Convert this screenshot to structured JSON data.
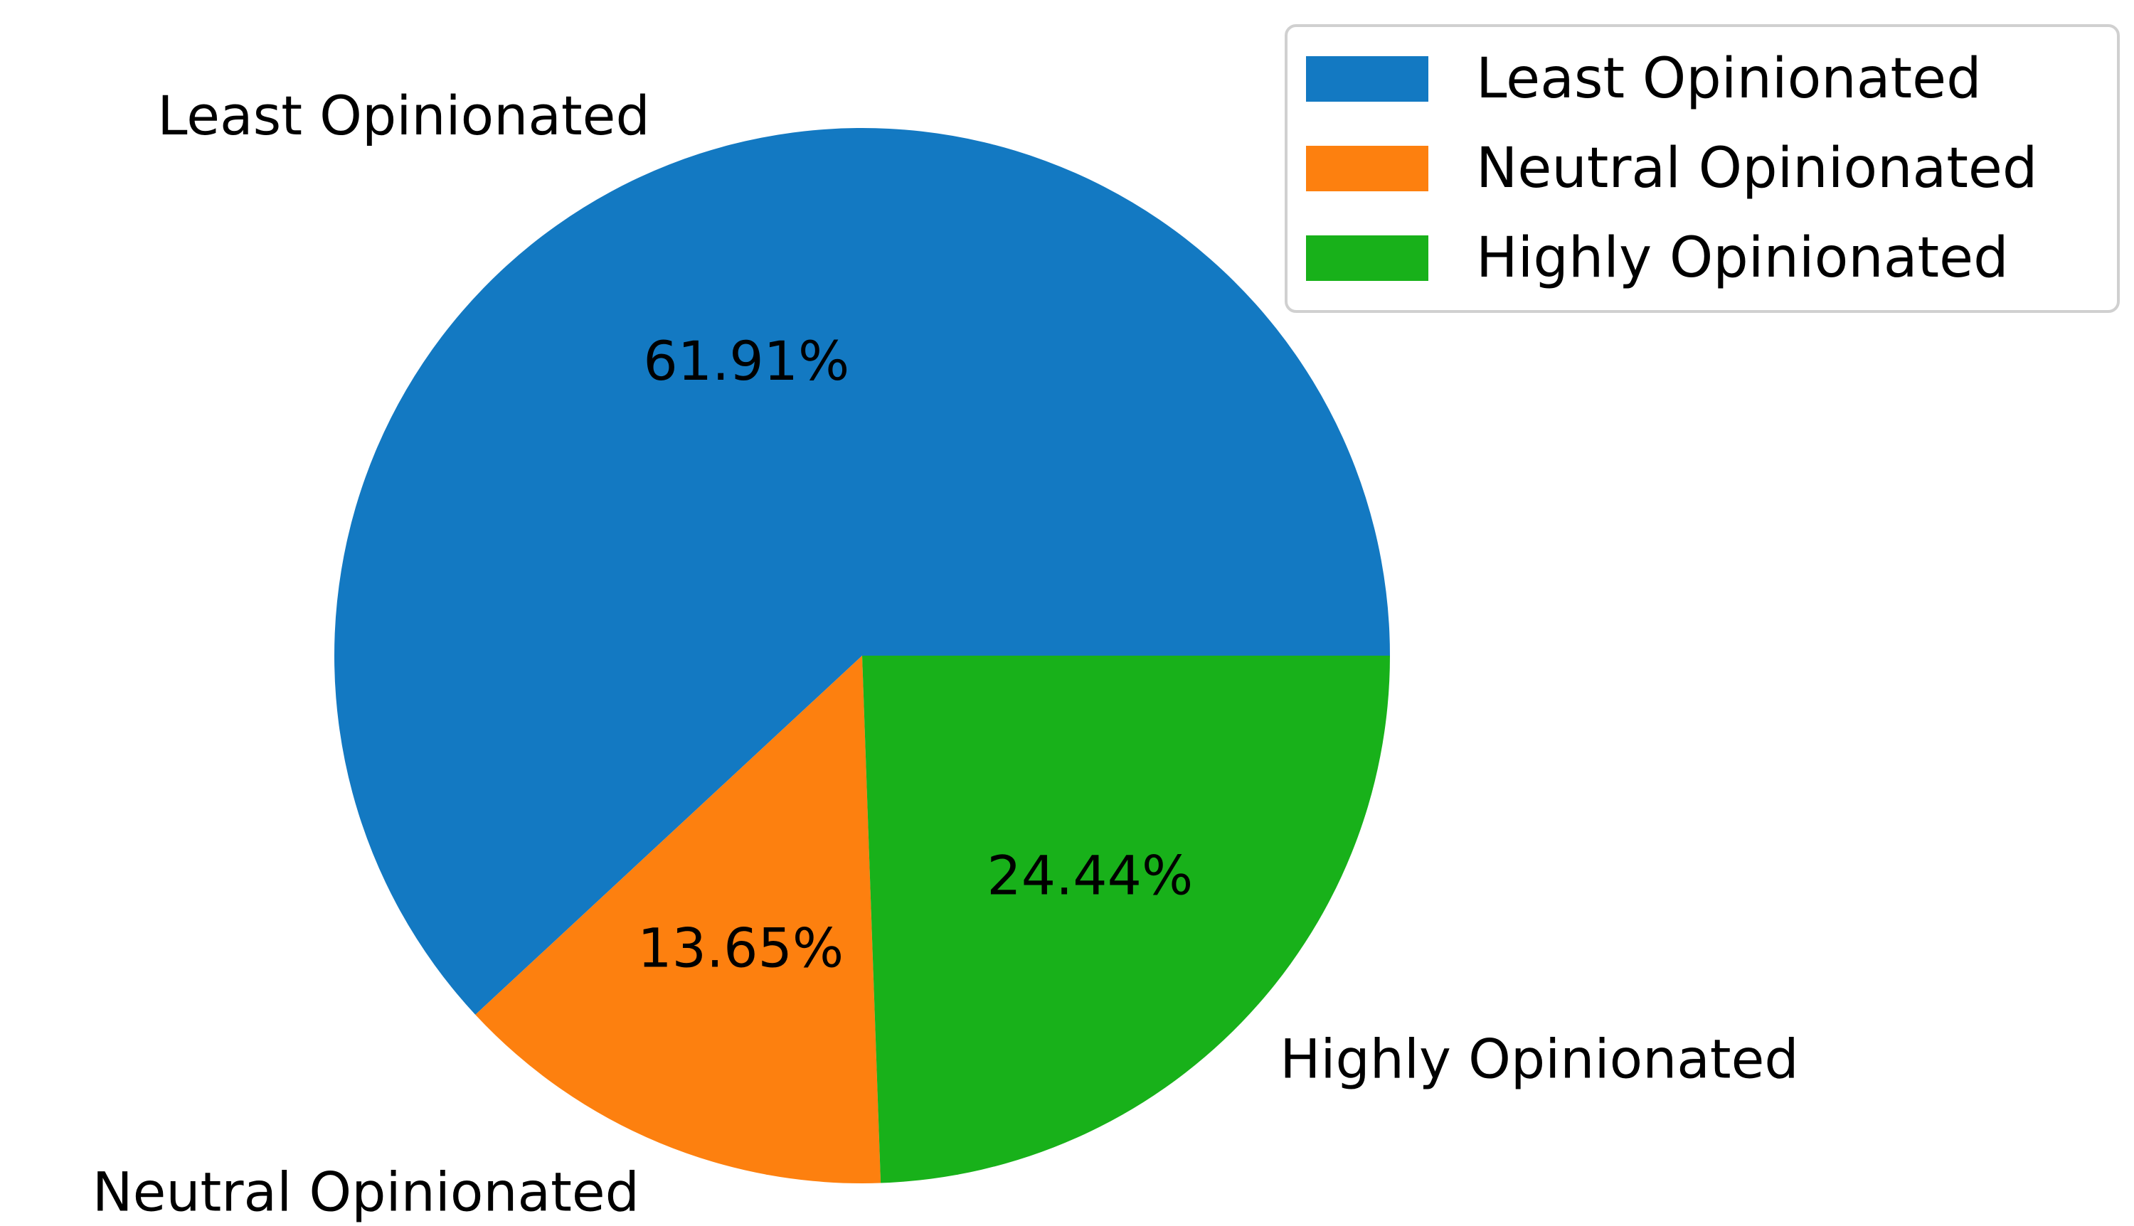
{
  "chart_data": {
    "type": "pie",
    "start_angle_deg": 0,
    "direction": "counterclockwise",
    "slices": [
      {
        "label": "Least Opinionated",
        "percent_label": "61.91%",
        "value": 61.91,
        "color": "#1379c2"
      },
      {
        "label": "Neutral Opinionated",
        "percent_label": "13.65%",
        "value": 13.65,
        "color": "#fd800f"
      },
      {
        "label": "Highly Opinionated",
        "percent_label": "24.44%",
        "value": 24.44,
        "color": "#18b11a"
      }
    ],
    "legend": {
      "position": "top-right",
      "entries": [
        "Least Opinionated",
        "Neutral Opinionated",
        "Highly Opinionated"
      ]
    },
    "title": ""
  }
}
